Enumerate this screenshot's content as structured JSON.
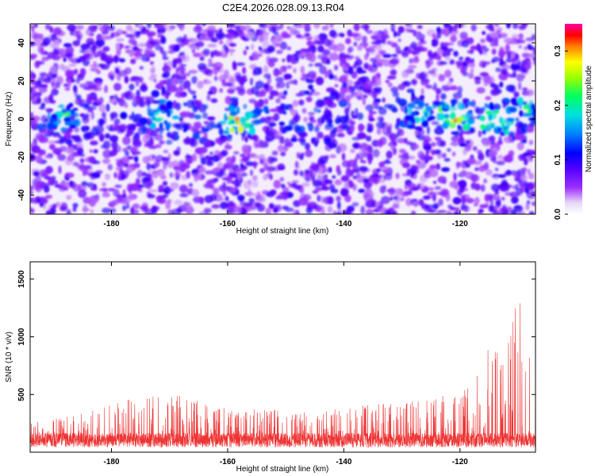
{
  "title": "C2E4.2026.028.09.13.R04",
  "chart_data": [
    {
      "type": "heatmap",
      "title": "C2E4.2026.028.09.13.R04",
      "xlabel": "Height of straight line (km)",
      "ylabel": "Frequency (Hz)",
      "xlim": [
        -194,
        -107
      ],
      "ylim": [
        -50,
        50
      ],
      "x_ticks": [
        "-180",
        "-160",
        "-140",
        "-120"
      ],
      "y_ticks": [
        "40",
        "20",
        "0",
        "-20",
        "-40"
      ],
      "colorbar": {
        "label": "Normalized spectral amplitude",
        "range": [
          0.0,
          0.35
        ],
        "ticks": [
          "0.0",
          "0.1",
          "0.2",
          "0.3"
        ]
      },
      "description_points": {
        "note": "strongest amplitude concentrated near 0 Hz",
        "hotspots": [
          {
            "x": -188,
            "y": 2,
            "value": 0.14
          },
          {
            "x": -171,
            "y": 2,
            "value": 0.16
          },
          {
            "x": -158,
            "y": -1,
            "value": 0.26
          },
          {
            "x": -127,
            "y": 3,
            "value": 0.14
          },
          {
            "x": -121,
            "y": 1,
            "value": 0.24
          },
          {
            "x": -114,
            "y": -1,
            "value": 0.22
          },
          {
            "x": -109,
            "y": 4,
            "value": 0.18
          }
        ]
      }
    },
    {
      "type": "line",
      "xlabel": "Height of straight line (km)",
      "ylabel": "SNR (10 * v/v)",
      "xlim": [
        -194,
        -107
      ],
      "ylim": [
        0,
        1650
      ],
      "x_ticks": [
        "-180",
        "-160",
        "-140",
        "-120"
      ],
      "y_ticks": [
        "500",
        "1000",
        "1500"
      ],
      "series": [
        {
          "name": "SNR",
          "color": "#ee3333",
          "envelope_x": [
            -194,
            -185,
            -172,
            -160,
            -145,
            -128,
            -122,
            -118,
            -115,
            -112,
            -111,
            -110,
            -109,
            -108,
            -107
          ],
          "envelope_max": [
            250,
            340,
            540,
            380,
            360,
            450,
            500,
            580,
            930,
            1000,
            1100,
            1630,
            1000,
            900,
            450
          ],
          "baseline": 140
        }
      ]
    }
  ]
}
